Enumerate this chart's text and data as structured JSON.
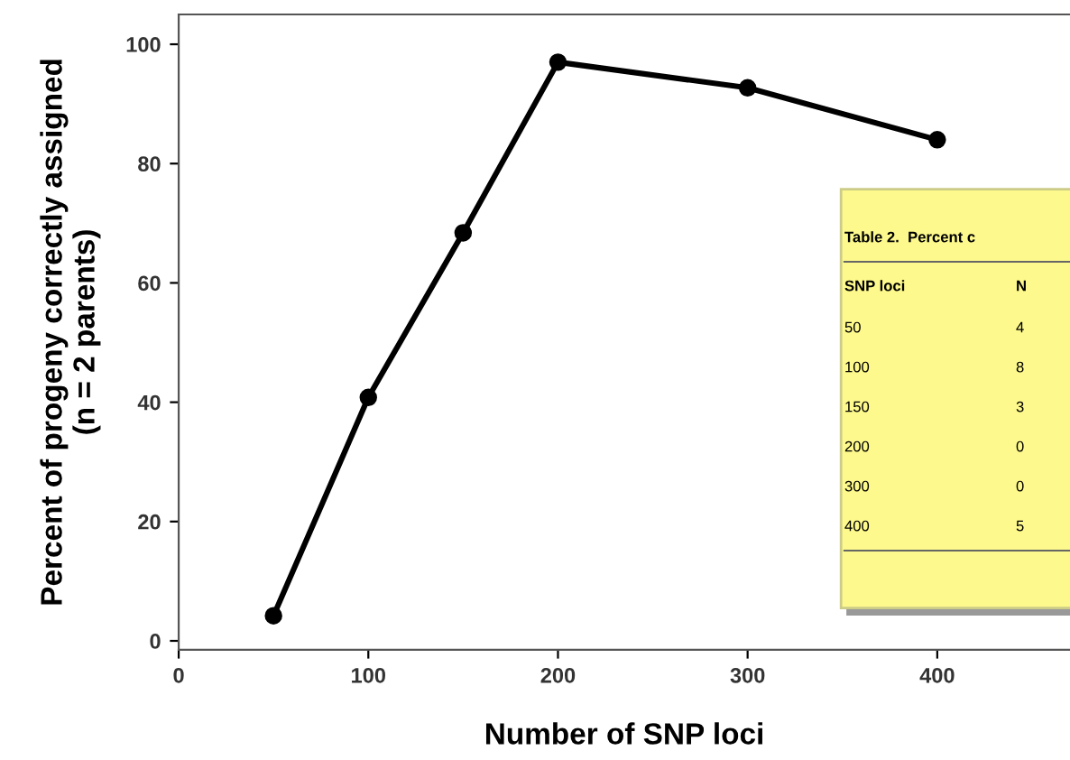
{
  "chart_data": {
    "type": "line",
    "xlabel": "Number of SNP loci",
    "ylabel": "Percent of progeny correctly assigned\n(n = 2 parents)",
    "x": [
      50,
      100,
      150,
      200,
      300,
      400
    ],
    "series": [
      {
        "color": "#000000",
        "values": [
          4.2,
          40.8,
          68.4,
          97,
          92.7,
          84
        ]
      }
    ],
    "marker": "circle",
    "line_style": "solid",
    "grid": false,
    "legend": false,
    "xlim": [
      0,
      470
    ],
    "xticks": [
      0,
      100,
      200,
      300,
      400
    ],
    "ylim": [
      -1.5,
      105
    ],
    "yticks": [
      0,
      20,
      40,
      60,
      80,
      100
    ],
    "annotations": [
      "Table 2.  Percent c",
      "SNP loci",
      "N",
      "50",
      "4",
      "100",
      "8",
      "150",
      "3",
      "200",
      "0",
      "300",
      "0",
      "400",
      "5"
    ]
  }
}
